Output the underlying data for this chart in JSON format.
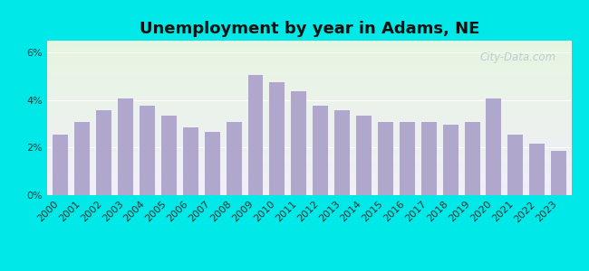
{
  "title": "Unemployment by year in Adams, NE",
  "years": [
    2000,
    2001,
    2002,
    2003,
    2004,
    2005,
    2006,
    2007,
    2008,
    2009,
    2010,
    2011,
    2012,
    2013,
    2014,
    2015,
    2016,
    2017,
    2018,
    2019,
    2020,
    2021,
    2022,
    2023
  ],
  "values": [
    2.6,
    3.1,
    3.6,
    4.1,
    3.8,
    3.4,
    2.9,
    2.7,
    3.1,
    5.1,
    4.8,
    4.4,
    3.8,
    3.6,
    3.4,
    3.1,
    3.1,
    3.1,
    3.0,
    3.1,
    4.1,
    2.6,
    2.2,
    1.9
  ],
  "bar_color": "#b0a8cc",
  "bar_edge_color": "#ffffff",
  "ylim": [
    0,
    6.5
  ],
  "yticks": [
    0,
    2,
    4,
    6
  ],
  "ytick_labels": [
    "0%",
    "2%",
    "4%",
    "6%"
  ],
  "title_fontsize": 13,
  "tick_fontsize": 8,
  "bg_outer": "#00e8e8",
  "bg_plot_top": "#e6f5e0",
  "bg_plot_bottom": "#f0eef8",
  "watermark": "City-Data.com"
}
